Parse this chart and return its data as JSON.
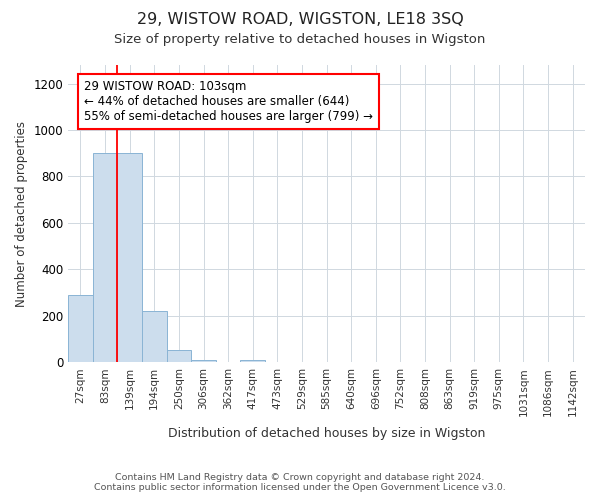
{
  "title": "29, WISTOW ROAD, WIGSTON, LE18 3SQ",
  "subtitle": "Size of property relative to detached houses in Wigston",
  "xlabel": "Distribution of detached houses by size in Wigston",
  "ylabel": "Number of detached properties",
  "bar_labels": [
    "27sqm",
    "83sqm",
    "139sqm",
    "194sqm",
    "250sqm",
    "306sqm",
    "362sqm",
    "417sqm",
    "473sqm",
    "529sqm",
    "585sqm",
    "640sqm",
    "696sqm",
    "752sqm",
    "808sqm",
    "863sqm",
    "919sqm",
    "975sqm",
    "1031sqm",
    "1086sqm",
    "1142sqm"
  ],
  "bar_values": [
    290,
    900,
    900,
    220,
    55,
    10,
    0,
    10,
    0,
    0,
    0,
    0,
    0,
    0,
    0,
    0,
    0,
    0,
    0,
    0,
    0
  ],
  "bar_color": "#ccdded",
  "bar_edge_color": "#8ab4d4",
  "annotation_box_text": "29 WISTOW ROAD: 103sqm\n← 44% of detached houses are smaller (644)\n55% of semi-detached houses are larger (799) →",
  "red_line_x": 1.5,
  "ylim": [
    0,
    1280
  ],
  "yticks": [
    0,
    200,
    400,
    600,
    800,
    1000,
    1200
  ],
  "footer_line1": "Contains HM Land Registry data © Crown copyright and database right 2024.",
  "footer_line2": "Contains public sector information licensed under the Open Government Licence v3.0.",
  "bg_color": "#ffffff",
  "plot_bg_color": "#ffffff",
  "grid_color": "#d0d8e0"
}
